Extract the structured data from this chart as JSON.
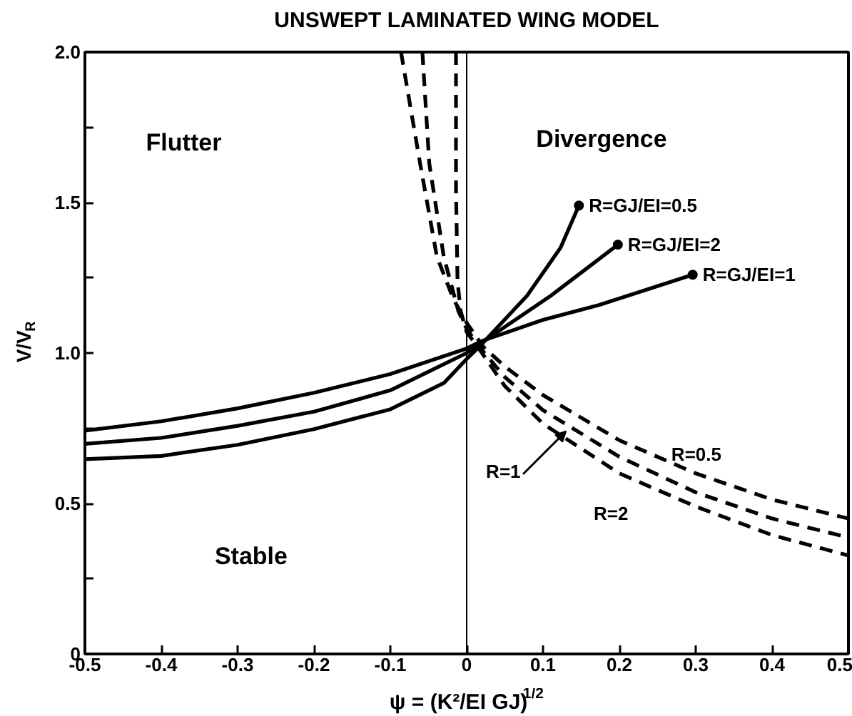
{
  "chart_data": {
    "type": "line",
    "title": "UNSWEPT LAMINATED WING MODEL",
    "xlabel": "ψ = (K²/EI GJ)$^{1/2}$",
    "ylabel": "V/V$_{R}$",
    "xlim": [
      -0.5,
      0.5
    ],
    "ylim": [
      0,
      2.0
    ],
    "xticks": [
      -0.5,
      -0.4,
      -0.3,
      -0.2,
      -0.1,
      0,
      0.1,
      0.2,
      0.3,
      0.4,
      0.5
    ],
    "yticks": [
      0,
      {
        "value": 0.25,
        "label": null
      },
      0.5,
      {
        "value": 0.75,
        "label": null
      },
      {
        "value": 1,
        "label": "1.0"
      },
      {
        "value": 1.25,
        "label": null
      },
      1.5,
      {
        "value": 1.75,
        "label": null
      },
      {
        "value": 2,
        "label": "2.0"
      }
    ],
    "grid": false,
    "line_style": "solid",
    "marker": "none",
    "series": [
      {
        "color": "#000000",
        "x": [
          -0.5,
          -0.4,
          -0.3,
          -0.2,
          -0.1,
          0,
          0.02,
          0.1,
          0.174,
          0.296
        ],
        "values": [
          0.742,
          0.773,
          0.816,
          0.868,
          0.93,
          1.015,
          1.04,
          1.11,
          1.16,
          1.26
        ]
      },
      {
        "color": "#000000",
        "x": [
          -0.5,
          -0.4,
          -0.3,
          -0.2,
          -0.1,
          0,
          0.02,
          0.11,
          0.198
        ],
        "values": [
          0.698,
          0.718,
          0.758,
          0.805,
          0.876,
          1.0,
          1.035,
          1.19,
          1.36
        ]
      },
      {
        "color": "#000000",
        "x": [
          -0.5,
          -0.4,
          -0.3,
          -0.2,
          -0.1,
          -0.03,
          0,
          0.02,
          0.079,
          0.123,
          0.147
        ],
        "values": [
          0.647,
          0.658,
          0.695,
          0.747,
          0.813,
          0.9,
          0.98,
          1.03,
          1.19,
          1.35,
          1.49
        ]
      },
      {
        "type": "scatter",
        "marker": "circle",
        "color": "#000000",
        "x": [
          0.147,
          0.198,
          0.296
        ],
        "values": [
          1.49,
          1.36,
          1.26
        ]
      },
      {
        "color": "#000000",
        "line_style": "dashed",
        "x": [
          -0.086,
          -0.061,
          -0.039,
          -0.0175,
          0,
          0.022,
          0.05,
          0.1,
          0.2,
          0.3,
          0.4,
          0.5
        ],
        "values": [
          2.0,
          1.63,
          1.32,
          1.18,
          1.1,
          1.02,
          0.955,
          0.86,
          0.71,
          0.6,
          0.513,
          0.45
        ]
      },
      {
        "color": "#000000",
        "line_style": "dashed",
        "x": [
          -0.058,
          -0.049,
          -0.03,
          -0.011,
          0,
          0.02,
          0.05,
          0.1,
          0.2,
          0.3,
          0.4,
          0.5
        ],
        "values": [
          2.0,
          1.63,
          1.32,
          1.14,
          1.08,
          1.01,
          0.92,
          0.81,
          0.655,
          0.537,
          0.45,
          0.387
        ]
      },
      {
        "color": "#000000",
        "line_style": "dashed",
        "x": [
          -0.014,
          -0.014,
          -0.012,
          -0.008,
          0,
          0.02,
          0.05,
          0.1,
          0.2,
          0.3,
          0.4,
          0.5
        ],
        "values": [
          2.0,
          1.55,
          1.24,
          1.14,
          1.07,
          1.0,
          0.89,
          0.765,
          0.6,
          0.49,
          0.395,
          0.327
        ]
      }
    ],
    "ref_lines": [
      {
        "axis": "x",
        "value": 0,
        "color": "#000000"
      }
    ],
    "annotations": [
      "Flutter",
      "Divergence",
      "Stable",
      {
        "text": "R=GJ/EI=0.5",
        "x": 0.147,
        "y": 1.49
      },
      {
        "text": "R=GJ/EI=2",
        "x": 0.198,
        "y": 1.36
      },
      {
        "text": "R=GJ/EI=1",
        "x": 0.296,
        "y": 1.26
      },
      {
        "text": "R=0.5",
        "x": 0.255,
        "y": 0.663
      },
      {
        "text": "R=1",
        "x": 0.13,
        "y": 0.74
      },
      {
        "text": "R=2",
        "x": 0.2,
        "y": 0.6
      }
    ]
  }
}
